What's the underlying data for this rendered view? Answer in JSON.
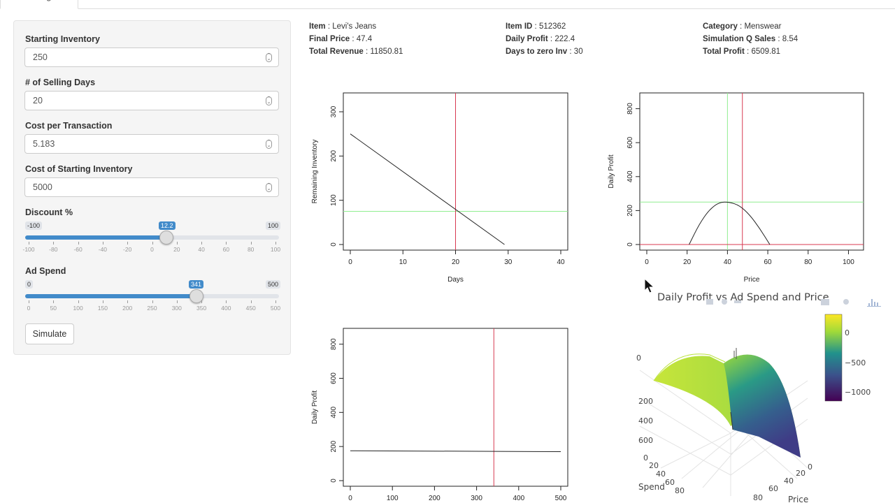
{
  "tab": {
    "label": "ng"
  },
  "sidebar": {
    "starting_inventory": {
      "label": "Starting Inventory",
      "value": "250"
    },
    "selling_days": {
      "label": "# of Selling Days",
      "value": "20"
    },
    "cost_per_transaction": {
      "label": "Cost per Transaction",
      "value": "5.183"
    },
    "cost_starting_inventory": {
      "label": "Cost of Starting Inventory",
      "value": "5000"
    },
    "discount": {
      "label": "Discount %",
      "min": "-100",
      "max": "100",
      "value": "12.2",
      "ticks": [
        "-100",
        "-80",
        "-60",
        "-40",
        "-20",
        "0",
        "20",
        "40",
        "60",
        "80",
        "100"
      ]
    },
    "ad_spend": {
      "label": "Ad Spend",
      "min": "0",
      "max": "500",
      "value": "341",
      "ticks": [
        "0",
        "50",
        "100",
        "150",
        "200",
        "250",
        "300",
        "350",
        "400",
        "450",
        "500"
      ]
    },
    "simulate_label": "Simulate"
  },
  "info": {
    "item_label": "Item",
    "item_value": "Levi's Jeans",
    "final_price_label": "Final Price",
    "final_price_value": "47.4",
    "total_revenue_label": "Total Revenue",
    "total_revenue_value": "11850.81",
    "item_id_label": "Item ID",
    "item_id_value": "512362",
    "daily_profit_label": "Daily Profit",
    "daily_profit_value": "222.4",
    "days_zero_label": "Days to zero Inv",
    "days_zero_value": "30",
    "category_label": "Category",
    "category_value": "Menswear",
    "sim_q_label": "Simulation Q Sales",
    "sim_q_value": "8.54",
    "total_profit_label": "Total Profit",
    "total_profit_value": "6509.81"
  },
  "surface": {
    "title": "Daily Profit vs Ad Spend and Price",
    "colorbar_ticks": [
      "0",
      "−500",
      "−1000"
    ],
    "axis_spend_label": "Spend",
    "axis_price_label": "Price",
    "z_ticks": [
      "0",
      "200",
      "400",
      "600"
    ],
    "spend_ticks": [
      "0",
      "20",
      "40",
      "60",
      "80"
    ],
    "price_ticks": [
      "0",
      "20",
      "40",
      "60",
      "80"
    ]
  },
  "colors": {
    "accent": "#428bca",
    "vline": "#d83a52",
    "hline": "#90ee90"
  },
  "chart_data": [
    {
      "type": "line",
      "title": "",
      "xlabel": "Days",
      "ylabel": "Remaining Inventory",
      "xlim": [
        0,
        40
      ],
      "ylim": [
        0,
        330
      ],
      "xticks": [
        0,
        10,
        20,
        30,
        40
      ],
      "yticks": [
        0,
        100,
        200,
        300
      ],
      "series": [
        {
          "x": [
            0,
            29.3
          ],
          "y": [
            250,
            0
          ]
        }
      ],
      "vline": 20,
      "hline": 75
    },
    {
      "type": "line",
      "title": "",
      "xlabel": "Price",
      "ylabel": "Daily Profit",
      "xlim": [
        0,
        104
      ],
      "ylim": [
        0,
        860
      ],
      "xticks": [
        0,
        20,
        40,
        60,
        80,
        100
      ],
      "yticks": [
        0,
        200,
        400,
        600,
        800
      ],
      "series": [
        {
          "x": [
            21,
            26,
            31,
            36,
            41,
            46,
            51,
            56,
            61
          ],
          "y": [
            0,
            120,
            205,
            250,
            250,
            230,
            175,
            95,
            0
          ]
        }
      ],
      "vline": 47.4,
      "vline2": 40,
      "hline": 250,
      "hline2": 0
    },
    {
      "type": "line",
      "title": "",
      "xlabel": "",
      "ylabel": "Daily Profit",
      "xlim": [
        0,
        500
      ],
      "ylim": [
        0,
        860
      ],
      "xticks": [
        0,
        100,
        200,
        300,
        400,
        500
      ],
      "yticks": [
        0,
        200,
        400,
        600,
        800
      ],
      "series": [
        {
          "x": [
            0,
            500
          ],
          "y": [
            175,
            170
          ]
        }
      ],
      "vline": 341
    }
  ]
}
